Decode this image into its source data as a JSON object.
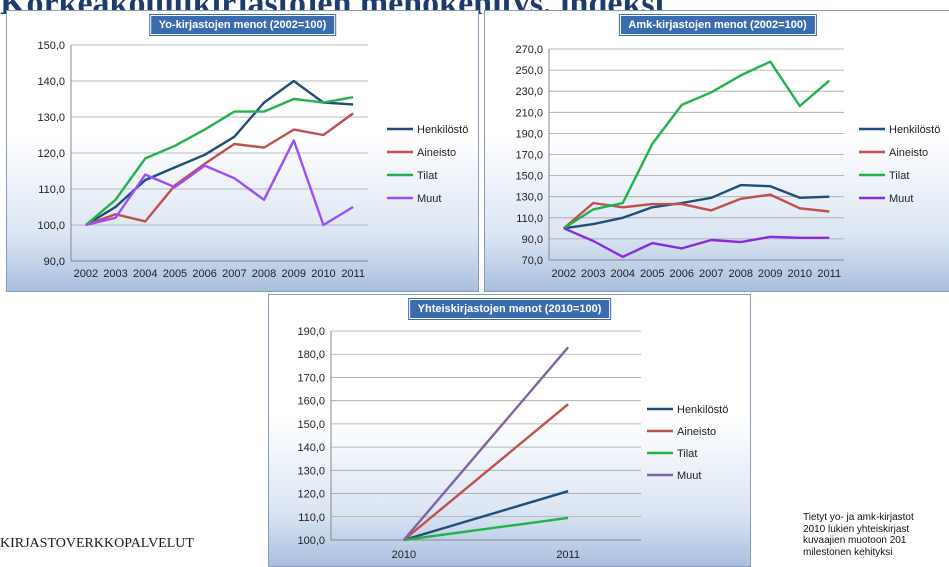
{
  "slide": {
    "title": "Korkeakoulukirjastojen menokehitys, indeksi",
    "footer_left": "KIRJASTOVERKKOPALVELUT",
    "footer_note_lines": [
      "Tietyt yo- ja amk-kirjastot",
      "2010 lukien yhteiskirjast",
      "kuvaajien muotoon 201",
      "milestonen kehityksi"
    ]
  },
  "colors": {
    "Henkilöstö": "#1f4e79",
    "Aineisto": "#c0504d",
    "Tilat": "#22b24c",
    "Muut_yo": "#9b4dff",
    "Muut_amk": "#8a2be2",
    "Muut_yhteis": "#8064a2"
  },
  "chart_data": [
    {
      "id": "yo",
      "type": "line",
      "title": "Yo-kirjastojen menot (2002=100)",
      "x": [
        "2002",
        "2003",
        "2004",
        "2005",
        "2006",
        "2007",
        "2008",
        "2009",
        "2010",
        "2011"
      ],
      "ylim": [
        90,
        150
      ],
      "yticks": [
        "90,0",
        "100,0",
        "110,0",
        "120,0",
        "130,0",
        "140,0",
        "150,0"
      ],
      "grid": true,
      "legend": "right",
      "series": [
        {
          "name": "Henkilöstö",
          "color_key": "Henkilöstö",
          "values": [
            100,
            105,
            112.5,
            116,
            119.5,
            124.5,
            134,
            140,
            134,
            133.5
          ]
        },
        {
          "name": "Aineisto",
          "color_key": "Aineisto",
          "values": [
            100,
            103,
            101,
            111,
            117,
            122.5,
            121.5,
            126.5,
            125,
            131
          ]
        },
        {
          "name": "Tilat",
          "color_key": "Tilat",
          "values": [
            100,
            107,
            118.5,
            122,
            126.5,
            131.5,
            131.5,
            135,
            134,
            135.5
          ]
        },
        {
          "name": "Muut",
          "color_key": "Muut_yo",
          "values": [
            100,
            102,
            114,
            110.5,
            116.5,
            113,
            107,
            123.5,
            100,
            105
          ]
        }
      ]
    },
    {
      "id": "amk",
      "type": "line",
      "title": "Amk-kirjastojen menot (2002=100)",
      "x": [
        "2002",
        "2003",
        "2004",
        "2005",
        "2006",
        "2007",
        "2008",
        "2009",
        "2010",
        "2011"
      ],
      "ylim": [
        70,
        270
      ],
      "yticks": [
        "70,0",
        "90,0",
        "110,0",
        "130,0",
        "150,0",
        "170,0",
        "190,0",
        "210,0",
        "230,0",
        "250,0",
        "270,0"
      ],
      "grid": true,
      "legend": "right",
      "series": [
        {
          "name": "Henkilöstö",
          "color_key": "Henkilöstö",
          "values": [
            100,
            104,
            110,
            120,
            124,
            129,
            141,
            140,
            129,
            130
          ]
        },
        {
          "name": "Aineisto",
          "color_key": "Aineisto",
          "values": [
            100,
            124,
            120,
            123,
            123,
            117,
            128,
            132,
            119,
            116
          ]
        },
        {
          "name": "Tilat",
          "color_key": "Tilat",
          "values": [
            100,
            118,
            124,
            180,
            217,
            229,
            245,
            258,
            216,
            240
          ]
        },
        {
          "name": "Muut",
          "color_key": "Muut_amk",
          "values": [
            100,
            88,
            73,
            86,
            81,
            89,
            87,
            92,
            91,
            91
          ]
        }
      ]
    },
    {
      "id": "yhteis",
      "type": "line",
      "title": "Yhteiskirjastojen menot (2010=100)",
      "x": [
        "2010",
        "2011"
      ],
      "ylim": [
        100,
        190
      ],
      "yticks": [
        "100,0",
        "110,0",
        "120,0",
        "130,0",
        "140,0",
        "150,0",
        "160,0",
        "170,0",
        "180,0",
        "190,0"
      ],
      "grid": true,
      "legend": "right",
      "series": [
        {
          "name": "Henkilöstö",
          "color_key": "Henkilöstö",
          "values": [
            100,
            121
          ]
        },
        {
          "name": "Aineisto",
          "color_key": "Aineisto",
          "values": [
            100,
            158.5
          ]
        },
        {
          "name": "Tilat",
          "color_key": "Tilat",
          "values": [
            100,
            109.5
          ]
        },
        {
          "name": "Muut",
          "color_key": "Muut_yhteis",
          "values": [
            100,
            183
          ]
        }
      ]
    }
  ]
}
